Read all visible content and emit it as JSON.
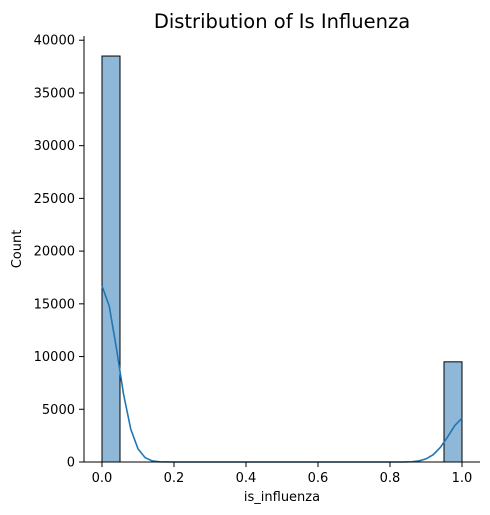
{
  "chart_data": {
    "type": "bar",
    "title": "Distribution of Is Influenza",
    "xlabel": "is_influenza",
    "ylabel": "Count",
    "xlim": [
      -0.05,
      1.05
    ],
    "ylim": [
      0,
      40400
    ],
    "xticks": [
      "0.0",
      "0.2",
      "0.4",
      "0.6",
      "0.8",
      "1.0"
    ],
    "xtick_values": [
      0,
      0.2,
      0.4,
      0.6,
      0.8,
      1.0
    ],
    "yticks": [
      "0",
      "5000",
      "10000",
      "15000",
      "20000",
      "25000",
      "30000",
      "35000",
      "40000"
    ],
    "ytick_values": [
      0,
      5000,
      10000,
      15000,
      20000,
      25000,
      30000,
      35000,
      40000
    ],
    "bins": [
      {
        "x0": 0.0,
        "x1": 0.05,
        "count": 38500
      },
      {
        "x0": 0.95,
        "x1": 1.0,
        "count": 9500
      }
    ],
    "kde": {
      "x": [
        0.0,
        0.02,
        0.04,
        0.06,
        0.08,
        0.1,
        0.12,
        0.14,
        0.16,
        0.2,
        0.4,
        0.6,
        0.8,
        0.84,
        0.86,
        0.88,
        0.9,
        0.92,
        0.94,
        0.96,
        0.98,
        1.0
      ],
      "y": [
        16700,
        14800,
        10800,
        6400,
        3100,
        1250,
        400,
        100,
        20,
        0,
        0,
        0,
        0,
        5,
        25,
        100,
        290,
        690,
        1390,
        2380,
        3460,
        4150
      ]
    },
    "colors": {
      "bar_fill": "#8fb8d8",
      "kde_line": "#1f77b4"
    },
    "grid": false
  }
}
